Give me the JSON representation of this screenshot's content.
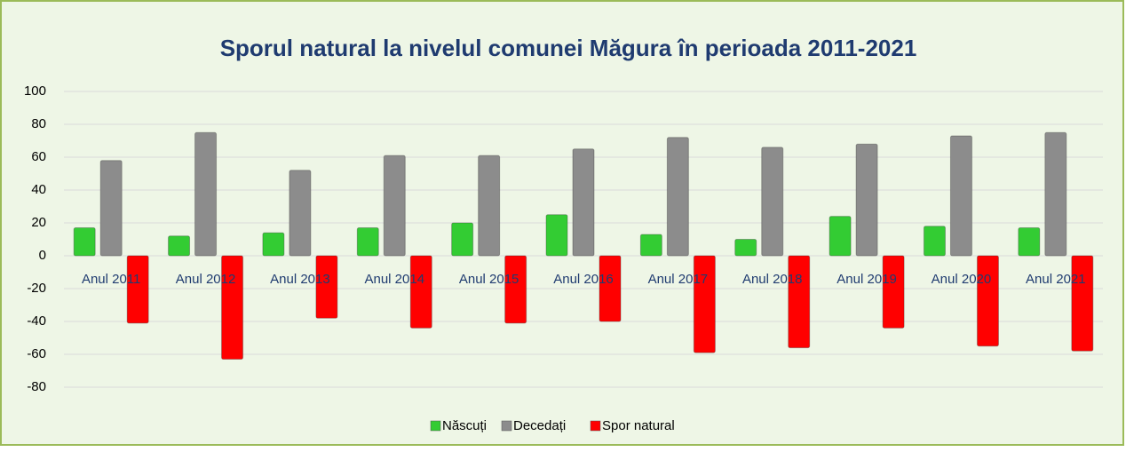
{
  "chart_data": {
    "type": "bar",
    "title": "Sporul natural la nivelul comunei Măgura în perioada 2011-2021",
    "categories": [
      "Anul 2011",
      "Anul 2012",
      "Anul 2013",
      "Anul 2014",
      "Anul 2015",
      "Anul 2016",
      "Anul 2017",
      "Anul 2018",
      "Anul 2019",
      "Anul 2020",
      "Anul 2021"
    ],
    "series": [
      {
        "name": "Născuți",
        "color": "#33cc33",
        "values": [
          17,
          12,
          14,
          17,
          20,
          25,
          13,
          10,
          24,
          18,
          17
        ]
      },
      {
        "name": "Decedați",
        "color": "#8c8c8c",
        "values": [
          58,
          75,
          52,
          61,
          61,
          65,
          72,
          66,
          68,
          73,
          75
        ]
      },
      {
        "name": "Spor natural",
        "color": "#ff0000",
        "values": [
          -41,
          -63,
          -38,
          -44,
          -41,
          -40,
          -59,
          -56,
          -44,
          -55,
          -58
        ]
      }
    ],
    "ylim": [
      -80,
      100
    ],
    "yticks": [
      -80,
      -60,
      -40,
      -20,
      0,
      20,
      40,
      60,
      80,
      100
    ],
    "grid": true,
    "legend": "bottom"
  }
}
